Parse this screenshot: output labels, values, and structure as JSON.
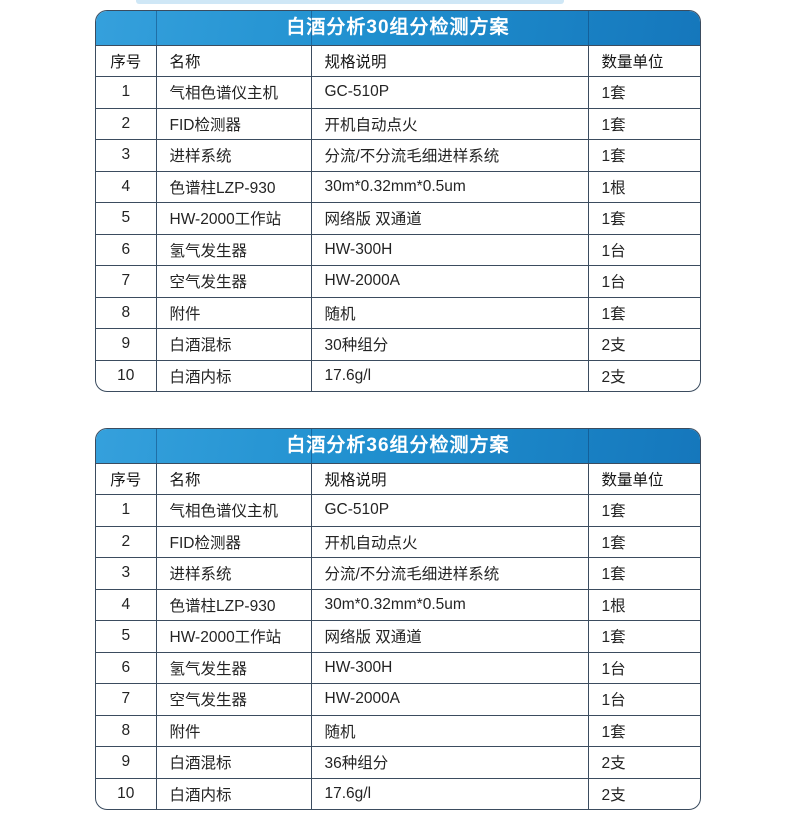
{
  "colors": {
    "accent_blue": "#1e8bcd",
    "title_gradient_start": "#35a0dc",
    "title_gradient_end": "#1577bc",
    "table_border": "#3b4c5f",
    "title_text": "#ffffff",
    "cell_text": "#232323",
    "top_strip": "#cfe7f6"
  },
  "tables": [
    {
      "title": "白酒分析30组分检测方案",
      "columns": [
        "序号",
        "名称",
        "规格说明",
        "数量单位"
      ],
      "rows": [
        [
          "1",
          "气相色谱仪主机",
          "GC-510P",
          "1套"
        ],
        [
          "2",
          "FID检测器",
          "开机自动点火",
          "1套"
        ],
        [
          "3",
          "进样系统",
          "分流/不分流毛细进样系统",
          "1套"
        ],
        [
          "4",
          "色谱柱LZP-930",
          "30m*0.32mm*0.5um",
          "1根"
        ],
        [
          "5",
          "HW-2000工作站",
          "网络版 双通道",
          "1套"
        ],
        [
          "6",
          "氢气发生器",
          "HW-300H",
          "1台"
        ],
        [
          "7",
          "空气发生器",
          "HW-2000A",
          "1台"
        ],
        [
          "8",
          "附件",
          "随机",
          "1套"
        ],
        [
          "9",
          "白酒混标",
          "30种组分",
          "2支"
        ],
        [
          "10",
          "白酒内标",
          "17.6g/l",
          "2支"
        ]
      ]
    },
    {
      "title": "白酒分析36组分检测方案",
      "columns": [
        "序号",
        "名称",
        "规格说明",
        "数量单位"
      ],
      "rows": [
        [
          "1",
          "气相色谱仪主机",
          "GC-510P",
          "1套"
        ],
        [
          "2",
          "FID检测器",
          "开机自动点火",
          "1套"
        ],
        [
          "3",
          "进样系统",
          "分流/不分流毛细进样系统",
          "1套"
        ],
        [
          "4",
          "色谱柱LZP-930",
          "30m*0.32mm*0.5um",
          "1根"
        ],
        [
          "5",
          "HW-2000工作站",
          "网络版 双通道",
          "1套"
        ],
        [
          "6",
          "氢气发生器",
          "HW-300H",
          "1台"
        ],
        [
          "7",
          "空气发生器",
          "HW-2000A",
          "1台"
        ],
        [
          "8",
          "附件",
          "随机",
          "1套"
        ],
        [
          "9",
          "白酒混标",
          "36种组分",
          "2支"
        ],
        [
          "10",
          "白酒内标",
          "17.6g/l",
          "2支"
        ]
      ]
    }
  ]
}
